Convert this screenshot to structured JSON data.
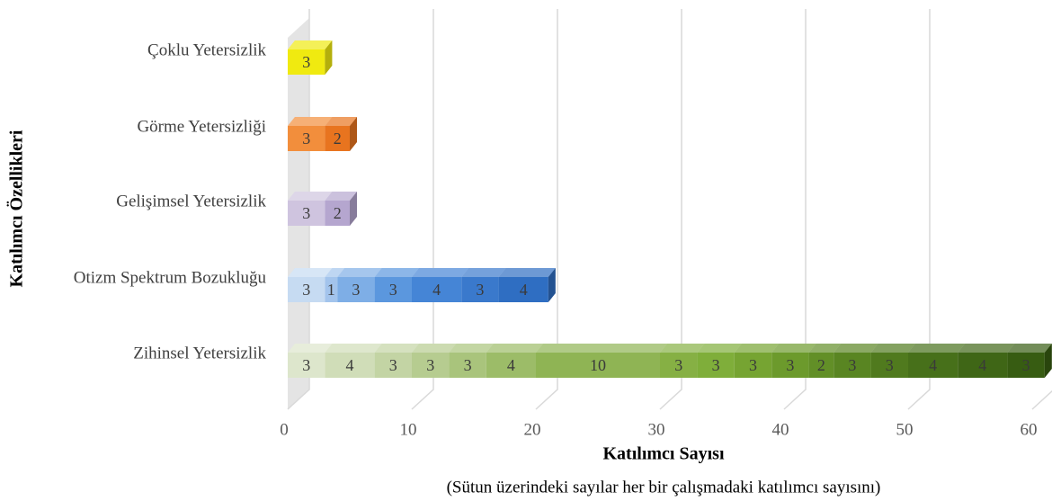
{
  "chart_data": {
    "type": "stacked-bar-horizontal-3d",
    "x_label": "Katılımcı Sayısı",
    "note": "(Sütun üzerindeki sayılar her bir çalışmadaki katılımcı sayısını)",
    "y_label": "Katılımcı Özellikleri",
    "categories": [
      "Zihinsel Yetersizlik",
      "Otizm Spektrum Bozukluğu",
      "Gelişimsel Yetersizlik",
      "Görme Yetersizliği",
      "Çoklu Yetersizlik"
    ],
    "values": [
      [
        3,
        4,
        3,
        3,
        3,
        4,
        10,
        3,
        3,
        3,
        3,
        2,
        3,
        3,
        4,
        4,
        3
      ],
      [
        3,
        1,
        3,
        3,
        4,
        3,
        4
      ],
      [
        3,
        2
      ],
      [
        3,
        2
      ],
      [
        3
      ]
    ],
    "colors": [
      [
        "#dde6cc",
        "#d0ddb8",
        "#c3d4a4",
        "#b6cc90",
        "#a9c47c",
        "#9cbc68",
        "#8fb454",
        "#86b044",
        "#7fae3a",
        "#76a432",
        "#6c9a2c",
        "#628f27",
        "#598522",
        "#507a1e",
        "#47701a",
        "#3f6616",
        "#375c12"
      ],
      [
        "#c6dbf2",
        "#a3c4ec",
        "#7eaee6",
        "#5b97de",
        "#4585d6",
        "#3a79cc",
        "#2f6ec2"
      ],
      [
        "#cfc4df",
        "#b5a6cf"
      ],
      [
        "#f28e3c",
        "#e8741f"
      ],
      [
        "#f0ea10"
      ]
    ],
    "xlim": [
      0,
      60
    ],
    "xticks": [
      0,
      10,
      20,
      30,
      40,
      50,
      60
    ],
    "grid": true
  }
}
